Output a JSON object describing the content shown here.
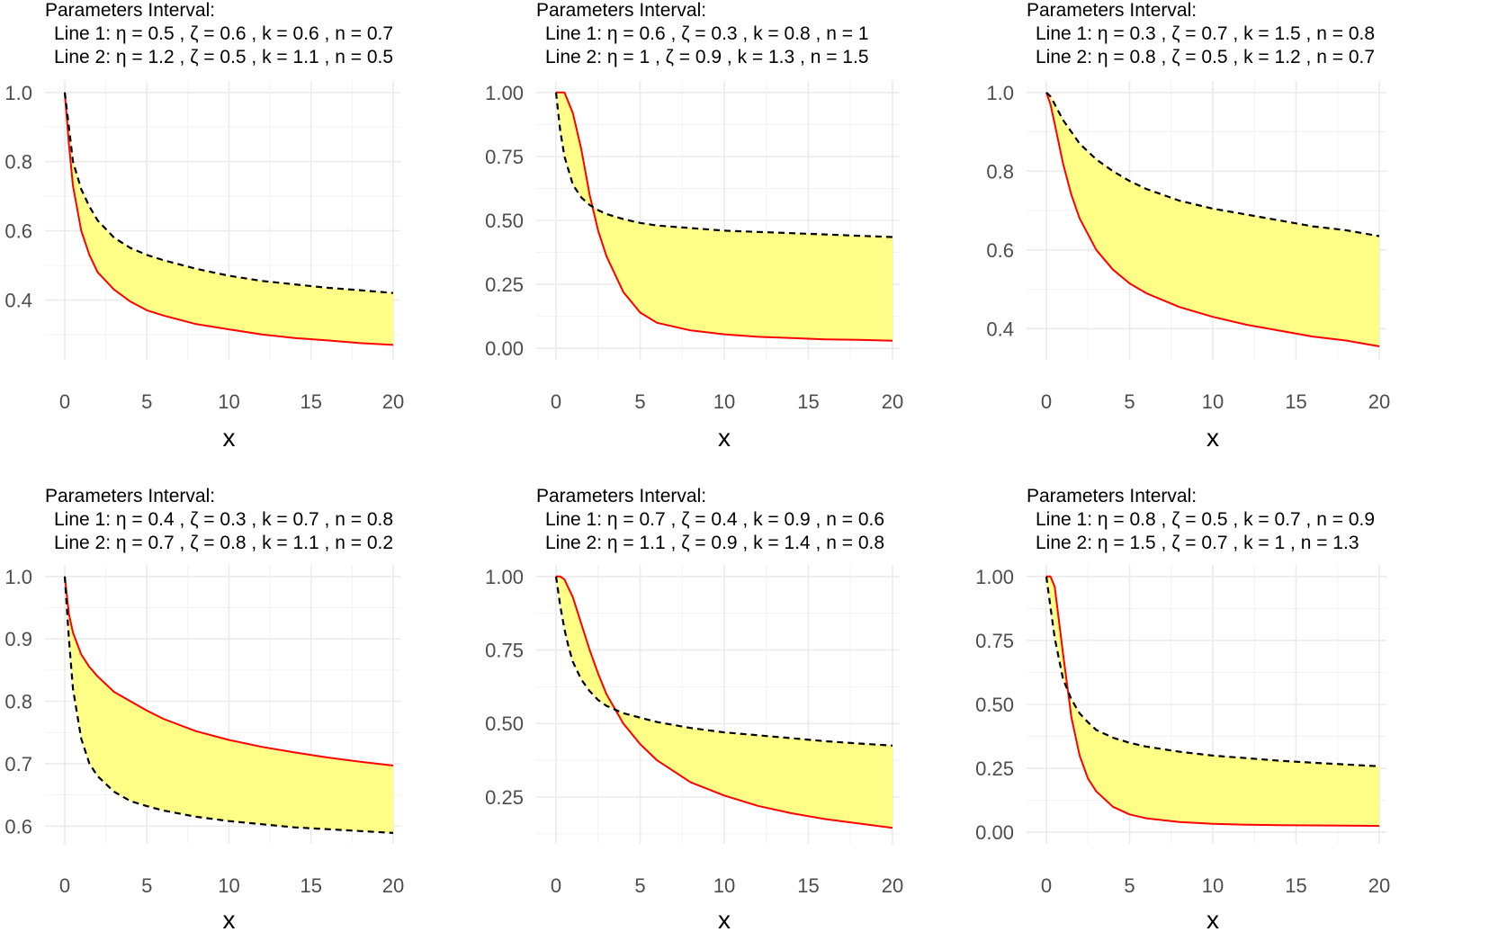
{
  "chart_data": [
    {
      "type": "area",
      "title": [
        "Parameters Interval:",
        "Line 1: η = 0.5 , ζ = 0.6 , k = 0.6 , n = 0.7",
        "Line 2: η = 1.2 , ζ = 0.5 , k = 1.1 , n = 0.5"
      ],
      "xlabel": "x",
      "ylabel": "",
      "xlim": [
        0,
        20
      ],
      "ylim": [
        0.26,
        1.0
      ],
      "xticks": [
        0,
        5,
        10,
        15,
        20
      ],
      "xtick_labels": [
        "0",
        "5",
        "10",
        "15",
        "20"
      ],
      "yticks": [
        0.4,
        0.6,
        0.8,
        1.0
      ],
      "ytick_labels": [
        "0.4",
        "0.6",
        "0.8",
        "1.0"
      ],
      "x": [
        0,
        0.25,
        0.5,
        1,
        1.5,
        2,
        3,
        4,
        5,
        6,
        8,
        10,
        12,
        14,
        16,
        18,
        20
      ],
      "series": [
        {
          "name": "Line 1",
          "color": "#000000",
          "dash": "dashed",
          "values": [
            1.0,
            0.9,
            0.8,
            0.72,
            0.67,
            0.63,
            0.58,
            0.55,
            0.53,
            0.515,
            0.49,
            0.47,
            0.455,
            0.445,
            0.435,
            0.428,
            0.42
          ]
        },
        {
          "name": "Line 2",
          "color": "#ff0000",
          "dash": "solid",
          "values": [
            1.0,
            0.85,
            0.73,
            0.6,
            0.53,
            0.48,
            0.43,
            0.395,
            0.37,
            0.355,
            0.33,
            0.315,
            0.3,
            0.29,
            0.283,
            0.275,
            0.27
          ]
        }
      ],
      "fill": "#ffff88"
    },
    {
      "type": "area",
      "title": [
        "Parameters Interval:",
        "Line 1: η = 0.6 , ζ = 0.3 , k = 0.8 , n = 1",
        "Line 2: η = 1 , ζ = 0.9 , k = 1.3 , n = 1.5"
      ],
      "xlabel": "x",
      "ylabel": "",
      "xlim": [
        0,
        20
      ],
      "ylim": [
        0.0,
        1.0
      ],
      "xticks": [
        0,
        5,
        10,
        15,
        20
      ],
      "xtick_labels": [
        "0",
        "5",
        "10",
        "15",
        "20"
      ],
      "yticks": [
        0.0,
        0.25,
        0.5,
        0.75,
        1.0
      ],
      "ytick_labels": [
        "0.00",
        "0.25",
        "0.50",
        "0.75",
        "1.00"
      ],
      "x": [
        0,
        0.25,
        0.5,
        1,
        1.5,
        2,
        2.5,
        3,
        4,
        5,
        6,
        8,
        10,
        12,
        14,
        16,
        18,
        20
      ],
      "series": [
        {
          "name": "Line 1",
          "color": "#000000",
          "dash": "dashed",
          "values": [
            1.0,
            0.85,
            0.75,
            0.64,
            0.59,
            0.56,
            0.54,
            0.525,
            0.505,
            0.49,
            0.48,
            0.47,
            0.46,
            0.455,
            0.45,
            0.445,
            0.44,
            0.435
          ]
        },
        {
          "name": "Line 2",
          "color": "#ff0000",
          "dash": "solid",
          "values": [
            1.0,
            1.0,
            1.0,
            0.92,
            0.78,
            0.6,
            0.46,
            0.36,
            0.22,
            0.14,
            0.1,
            0.07,
            0.055,
            0.045,
            0.04,
            0.035,
            0.033,
            0.03
          ]
        }
      ],
      "fill": "#ffff88"
    },
    {
      "type": "area",
      "title": [
        "Parameters Interval:",
        "Line 1: η = 0.3 , ζ = 0.7 , k = 1.5 , n = 0.8",
        "Line 2: η = 0.8 , ζ = 0.5 , k = 1.2 , n = 0.7"
      ],
      "xlabel": "x",
      "ylabel": "",
      "xlim": [
        0,
        20
      ],
      "ylim": [
        0.35,
        1.0
      ],
      "xticks": [
        0,
        5,
        10,
        15,
        20
      ],
      "xtick_labels": [
        "0",
        "5",
        "10",
        "15",
        "20"
      ],
      "yticks": [
        0.4,
        0.6,
        0.8,
        1.0
      ],
      "ytick_labels": [
        "0.4",
        "0.6",
        "0.8",
        "1.0"
      ],
      "x": [
        0,
        0.25,
        0.5,
        1,
        1.5,
        2,
        3,
        4,
        5,
        6,
        8,
        10,
        12,
        14,
        16,
        18,
        20
      ],
      "series": [
        {
          "name": "Line 1",
          "color": "#000000",
          "dash": "dashed",
          "values": [
            1.0,
            0.99,
            0.97,
            0.93,
            0.9,
            0.87,
            0.83,
            0.8,
            0.775,
            0.755,
            0.725,
            0.705,
            0.69,
            0.675,
            0.66,
            0.65,
            0.635
          ]
        },
        {
          "name": "Line 2",
          "color": "#ff0000",
          "dash": "solid",
          "values": [
            1.0,
            0.97,
            0.92,
            0.82,
            0.74,
            0.68,
            0.6,
            0.55,
            0.515,
            0.49,
            0.455,
            0.43,
            0.41,
            0.395,
            0.38,
            0.37,
            0.355
          ]
        }
      ],
      "fill": "#ffff88"
    },
    {
      "type": "area",
      "title": [
        "Parameters Interval:",
        "Line 1: η = 0.4 , ζ = 0.3 , k = 0.7 , n = 0.8",
        "Line 2: η = 0.7 , ζ = 0.8 , k = 1.1 , n = 0.2"
      ],
      "xlabel": "x",
      "ylabel": "",
      "xlim": [
        0,
        20
      ],
      "ylim": [
        0.59,
        1.0
      ],
      "xticks": [
        0,
        5,
        10,
        15,
        20
      ],
      "xtick_labels": [
        "0",
        "5",
        "10",
        "15",
        "20"
      ],
      "yticks": [
        0.6,
        0.7,
        0.8,
        0.9,
        1.0
      ],
      "ytick_labels": [
        "0.6",
        "0.7",
        "0.8",
        "0.9",
        "1.0"
      ],
      "x": [
        0,
        0.25,
        0.5,
        1,
        1.5,
        2,
        3,
        4,
        5,
        6,
        8,
        10,
        12,
        14,
        16,
        18,
        20
      ],
      "series": [
        {
          "name": "Line 1",
          "color": "#000000",
          "dash": "dashed",
          "values": [
            1.0,
            0.9,
            0.82,
            0.74,
            0.7,
            0.68,
            0.655,
            0.64,
            0.632,
            0.625,
            0.615,
            0.608,
            0.603,
            0.598,
            0.595,
            0.592,
            0.589
          ]
        },
        {
          "name": "Line 2",
          "color": "#ff0000",
          "dash": "solid",
          "values": [
            1.0,
            0.94,
            0.91,
            0.875,
            0.855,
            0.84,
            0.815,
            0.8,
            0.785,
            0.772,
            0.752,
            0.738,
            0.727,
            0.718,
            0.71,
            0.703,
            0.697
          ]
        }
      ],
      "fill": "#ffff88"
    },
    {
      "type": "area",
      "title": [
        "Parameters Interval:",
        "Line 1: η = 0.7 , ζ = 0.4 , k = 0.9 , n = 0.6",
        "Line 2: η = 1.1 , ζ = 0.9 , k = 1.4 , n = 0.8"
      ],
      "xlabel": "x",
      "ylabel": "",
      "xlim": [
        0,
        20
      ],
      "ylim": [
        0.13,
        1.0
      ],
      "xticks": [
        0,
        5,
        10,
        15,
        20
      ],
      "xtick_labels": [
        "0",
        "5",
        "10",
        "15",
        "20"
      ],
      "yticks": [
        0.25,
        0.5,
        0.75,
        1.0
      ],
      "ytick_labels": [
        "0.25",
        "0.50",
        "0.75",
        "1.00"
      ],
      "x": [
        0,
        0.25,
        0.5,
        0.75,
        1,
        1.5,
        2,
        2.5,
        3,
        4,
        5,
        6,
        8,
        10,
        12,
        14,
        16,
        18,
        20
      ],
      "series": [
        {
          "name": "Line 1",
          "color": "#000000",
          "dash": "dashed",
          "values": [
            1.0,
            0.9,
            0.82,
            0.76,
            0.71,
            0.65,
            0.61,
            0.58,
            0.56,
            0.535,
            0.52,
            0.505,
            0.485,
            0.47,
            0.46,
            0.45,
            0.44,
            0.432,
            0.425
          ]
        },
        {
          "name": "Line 2",
          "color": "#ff0000",
          "dash": "solid",
          "values": [
            1.0,
            1.0,
            0.99,
            0.96,
            0.93,
            0.84,
            0.75,
            0.67,
            0.6,
            0.5,
            0.43,
            0.375,
            0.3,
            0.255,
            0.22,
            0.195,
            0.175,
            0.16,
            0.145
          ]
        }
      ],
      "fill": "#ffff88"
    },
    {
      "type": "area",
      "title": [
        "Parameters Interval:",
        "Line 1: η = 0.8 , ζ = 0.5 , k = 0.7 , n = 0.9",
        "Line 2: η = 1.5 , ζ = 0.7 , k = 1 , n = 1.3"
      ],
      "xlabel": "x",
      "ylabel": "",
      "xlim": [
        0,
        20
      ],
      "ylim": [
        0.0,
        1.0
      ],
      "xticks": [
        0,
        5,
        10,
        15,
        20
      ],
      "xtick_labels": [
        "0",
        "5",
        "10",
        "15",
        "20"
      ],
      "yticks": [
        0.0,
        0.25,
        0.5,
        0.75,
        1.0
      ],
      "ytick_labels": [
        "0.00",
        "0.25",
        "0.50",
        "0.75",
        "1.00"
      ],
      "x": [
        0,
        0.25,
        0.5,
        1,
        1.5,
        2,
        2.5,
        3,
        4,
        5,
        6,
        8,
        10,
        12,
        14,
        16,
        18,
        20
      ],
      "series": [
        {
          "name": "Line 1",
          "color": "#000000",
          "dash": "dashed",
          "values": [
            1.0,
            0.88,
            0.76,
            0.6,
            0.52,
            0.465,
            0.43,
            0.4,
            0.37,
            0.35,
            0.335,
            0.315,
            0.3,
            0.29,
            0.28,
            0.272,
            0.265,
            0.258
          ]
        },
        {
          "name": "Line 2",
          "color": "#ff0000",
          "dash": "solid",
          "values": [
            1.0,
            1.0,
            0.96,
            0.7,
            0.45,
            0.3,
            0.21,
            0.16,
            0.1,
            0.07,
            0.055,
            0.04,
            0.033,
            0.03,
            0.028,
            0.027,
            0.026,
            0.025
          ]
        }
      ],
      "fill": "#ffff88"
    }
  ]
}
